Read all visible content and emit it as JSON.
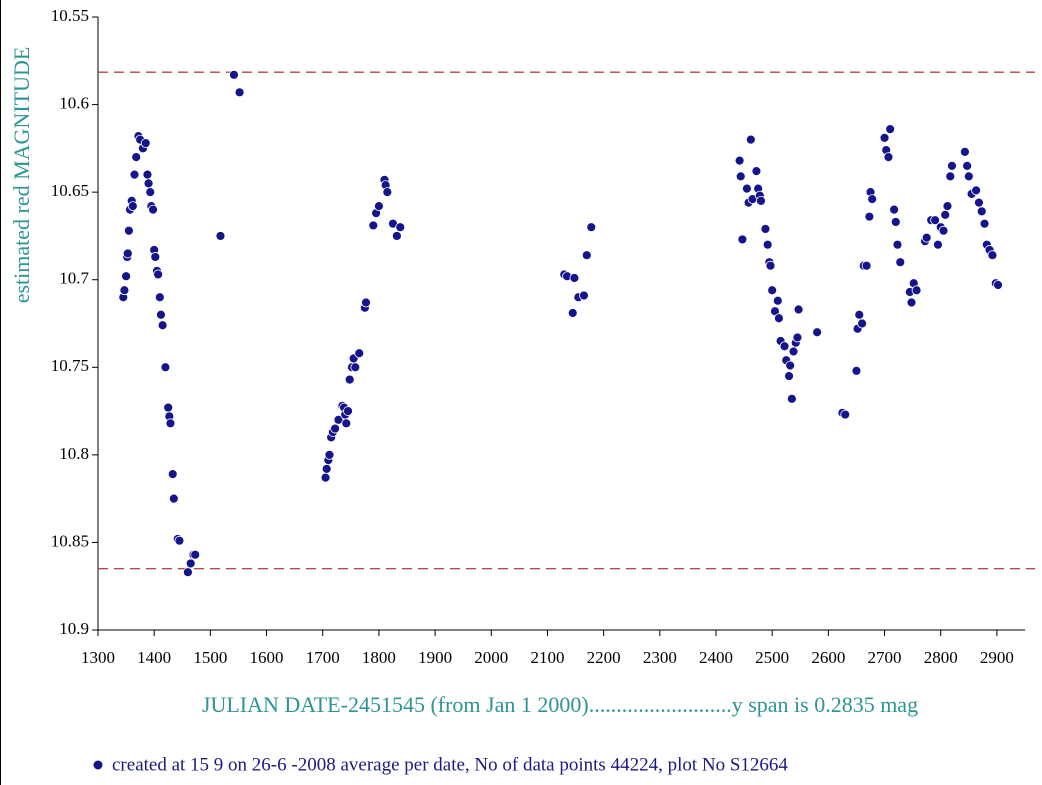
{
  "chart_data": {
    "type": "scatter",
    "xlabel": "JULIAN DATE-2451545 (from Jan 1 2000)..........................y span is 0.2835 mag",
    "ylabel": "estimated red MAGNITUDE",
    "xlim": [
      1300,
      2950
    ],
    "xticks": [
      1300,
      1400,
      1500,
      1600,
      1700,
      1800,
      1900,
      2000,
      2100,
      2200,
      2300,
      2400,
      2500,
      2600,
      2700,
      2800,
      2900
    ],
    "ylim": [
      10.9,
      10.55
    ],
    "yticks": [
      10.55,
      10.6,
      10.65,
      10.7,
      10.75,
      10.8,
      10.85,
      10.9
    ],
    "hlines": [
      10.5815,
      10.865
    ],
    "hline_color": "#b04848",
    "series": [
      {
        "name": "created at 15 9 on 26-6 -2008 average per date, No of data points 44224,  plot No S12664",
        "color": "#14148c",
        "x": [
          1345,
          1347,
          1350,
          1352,
          1353,
          1355,
          1357,
          1360,
          1362,
          1365,
          1368,
          1372,
          1375,
          1380,
          1385,
          1388,
          1390,
          1393,
          1395,
          1398,
          1400,
          1402,
          1405,
          1407,
          1410,
          1412,
          1415,
          1420,
          1425,
          1427,
          1429,
          1433,
          1435,
          1442,
          1445,
          1460,
          1465,
          1470,
          1473,
          1518,
          1542,
          1552,
          1705,
          1707,
          1710,
          1712,
          1715,
          1718,
          1722,
          1728,
          1735,
          1738,
          1740,
          1742,
          1745,
          1748,
          1752,
          1755,
          1758,
          1765,
          1775,
          1777,
          1790,
          1795,
          1800,
          1810,
          1812,
          1815,
          1825,
          1832,
          1838,
          2130,
          2135,
          2145,
          2148,
          2155,
          2165,
          2170,
          2178,
          2442,
          2444,
          2447,
          2455,
          2458,
          2462,
          2465,
          2472,
          2475,
          2478,
          2480,
          2488,
          2492,
          2495,
          2497,
          2500,
          2505,
          2510,
          2512,
          2515,
          2522,
          2525,
          2530,
          2532,
          2535,
          2538,
          2542,
          2545,
          2547,
          2580,
          2625,
          2630,
          2650,
          2652,
          2655,
          2660,
          2663,
          2668,
          2673,
          2675,
          2678,
          2700,
          2703,
          2707,
          2710,
          2717,
          2720,
          2723,
          2728,
          2745,
          2748,
          2752,
          2757,
          2772,
          2775,
          2783,
          2790,
          2795,
          2800,
          2805,
          2808,
          2812,
          2817,
          2820,
          2843,
          2847,
          2850,
          2855,
          2863,
          2868,
          2873,
          2878,
          2882,
          2887,
          2892,
          2898,
          2902
        ],
        "values": [
          10.71,
          10.706,
          10.698,
          10.687,
          10.685,
          10.672,
          10.66,
          10.655,
          10.658,
          10.64,
          10.63,
          10.618,
          10.62,
          10.625,
          10.622,
          10.64,
          10.645,
          10.65,
          10.658,
          10.66,
          10.683,
          10.687,
          10.695,
          10.697,
          10.71,
          10.72,
          10.726,
          10.75,
          10.773,
          10.778,
          10.782,
          10.811,
          10.825,
          10.848,
          10.849,
          10.867,
          10.862,
          10.857,
          10.857,
          10.675,
          10.583,
          10.593,
          10.813,
          10.808,
          10.803,
          10.8,
          10.79,
          10.787,
          10.785,
          10.78,
          10.772,
          10.773,
          10.777,
          10.782,
          10.775,
          10.757,
          10.75,
          10.745,
          10.75,
          10.742,
          10.716,
          10.713,
          10.669,
          10.662,
          10.658,
          10.643,
          10.646,
          10.65,
          10.668,
          10.675,
          10.67,
          10.697,
          10.698,
          10.719,
          10.699,
          10.71,
          10.709,
          10.686,
          10.67,
          10.632,
          10.641,
          10.677,
          10.648,
          10.656,
          10.62,
          10.654,
          10.638,
          10.648,
          10.652,
          10.655,
          10.671,
          10.68,
          10.69,
          10.692,
          10.706,
          10.718,
          10.712,
          10.722,
          10.735,
          10.738,
          10.746,
          10.755,
          10.749,
          10.768,
          10.741,
          10.736,
          10.733,
          10.717,
          10.73,
          10.776,
          10.777,
          10.752,
          10.728,
          10.72,
          10.725,
          10.692,
          10.692,
          10.664,
          10.65,
          10.654,
          10.619,
          10.626,
          10.63,
          10.614,
          10.66,
          10.667,
          10.68,
          10.69,
          10.707,
          10.713,
          10.702,
          10.706,
          10.678,
          10.676,
          10.666,
          10.666,
          10.68,
          10.67,
          10.672,
          10.663,
          10.658,
          10.641,
          10.635,
          10.627,
          10.635,
          10.641,
          10.651,
          10.649,
          10.656,
          10.661,
          10.668,
          10.68,
          10.683,
          10.686,
          10.702,
          10.703
        ]
      }
    ]
  }
}
